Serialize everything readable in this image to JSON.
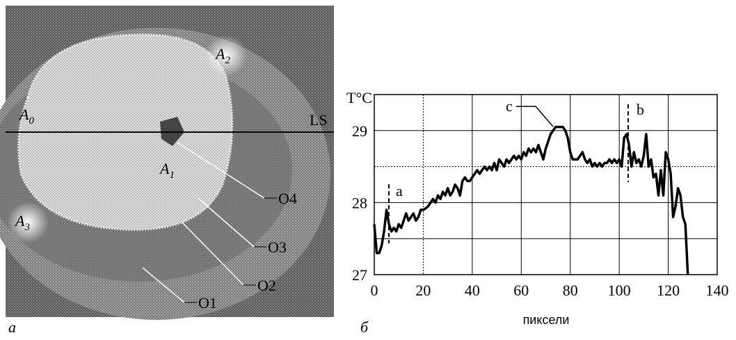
{
  "panel_a": {
    "caption": "а",
    "line_label": "LS",
    "regions": [
      {
        "main": "A",
        "sub": "0"
      },
      {
        "main": "A",
        "sub": "1"
      },
      {
        "main": "A",
        "sub": "2"
      },
      {
        "main": "A",
        "sub": "3"
      }
    ],
    "outlines": [
      "O1",
      "O2",
      "O3",
      "O4"
    ]
  },
  "chart_data": {
    "type": "line",
    "caption": "б",
    "ylabel": "T°C",
    "xlabel": "пиксели",
    "xlim": [
      0,
      140
    ],
    "xticks": [
      0,
      20,
      40,
      60,
      80,
      100,
      120,
      140
    ],
    "ylim": [
      27,
      29.5
    ],
    "yticks": [
      27,
      28,
      29
    ],
    "yminor": [
      27.5,
      28.5,
      29.5
    ],
    "grid": true,
    "annotations": [
      "a",
      "b",
      "c"
    ],
    "series": [
      {
        "color": "#000000",
        "x": [
          0,
          1,
          2,
          3,
          4,
          5,
          6,
          7,
          8,
          9,
          10,
          11,
          12,
          13,
          14,
          15,
          16,
          17,
          18,
          19,
          20,
          21,
          22,
          23,
          24,
          25,
          26,
          27,
          28,
          29,
          30,
          31,
          32,
          33,
          34,
          35,
          36,
          37,
          38,
          39,
          40,
          41,
          42,
          43,
          44,
          45,
          46,
          47,
          48,
          49,
          50,
          51,
          52,
          53,
          54,
          55,
          56,
          57,
          58,
          59,
          60,
          61,
          62,
          63,
          64,
          65,
          66,
          67,
          68,
          69,
          70,
          71,
          72,
          73,
          74,
          75,
          76,
          77,
          78,
          79,
          80,
          81,
          82,
          83,
          84,
          85,
          86,
          87,
          88,
          89,
          90,
          91,
          92,
          93,
          94,
          95,
          96,
          97,
          98,
          99,
          100,
          101,
          102,
          103,
          104,
          105,
          106,
          107,
          108,
          109,
          110,
          111,
          112,
          113,
          114,
          115,
          116,
          117,
          118,
          119,
          120,
          121,
          122,
          123,
          124,
          125,
          126,
          127,
          128
        ],
        "values": [
          27.7,
          27.3,
          27.3,
          27.4,
          27.6,
          27.9,
          27.7,
          27.6,
          27.65,
          27.6,
          27.7,
          27.65,
          27.75,
          27.85,
          27.75,
          27.8,
          27.85,
          27.75,
          27.8,
          27.9,
          27.9,
          27.92,
          27.95,
          28.0,
          28.05,
          28.0,
          28.1,
          28.05,
          28.15,
          28.1,
          28.2,
          28.1,
          28.15,
          28.25,
          28.2,
          28.1,
          28.3,
          28.35,
          28.3,
          28.3,
          28.35,
          28.4,
          28.45,
          28.4,
          28.45,
          28.5,
          28.45,
          28.5,
          28.45,
          28.55,
          28.45,
          28.6,
          28.55,
          28.5,
          28.6,
          28.55,
          28.6,
          28.65,
          28.6,
          28.65,
          28.6,
          28.7,
          28.65,
          28.75,
          28.7,
          28.75,
          28.7,
          28.8,
          28.7,
          28.6,
          28.75,
          28.85,
          28.95,
          29.0,
          29.05,
          29.05,
          29.05,
          29.05,
          29.0,
          28.9,
          28.7,
          28.6,
          28.6,
          28.6,
          28.65,
          28.7,
          28.6,
          28.55,
          28.6,
          28.5,
          28.55,
          28.5,
          28.55,
          28.5,
          28.55,
          28.55,
          28.6,
          28.55,
          28.6,
          28.55,
          28.6,
          28.5,
          28.9,
          28.95,
          28.8,
          28.5,
          28.7,
          28.55,
          28.6,
          28.5,
          28.65,
          28.95,
          28.5,
          28.6,
          28.35,
          28.4,
          28.1,
          28.45,
          28.1,
          28.7,
          28.6,
          28.4,
          27.8,
          27.95,
          28.2,
          28.1,
          27.8,
          27.7,
          27.0
        ]
      }
    ]
  }
}
